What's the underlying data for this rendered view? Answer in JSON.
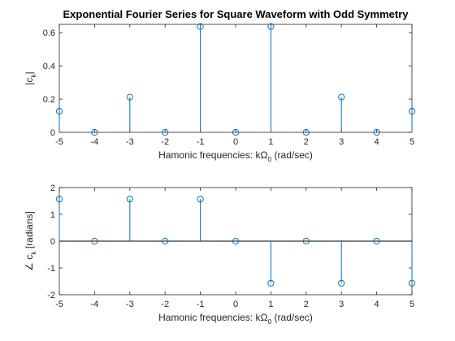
{
  "chart_data": [
    {
      "type": "stem",
      "title": "Exponential Fourier Series for Square Waveform with Odd Symmetry",
      "xlabel": {
        "main": "Hamonic frequencies: kΩ",
        "sub": "0",
        "tail": " (rad/sec)"
      },
      "ylabel": {
        "main": "|c",
        "sub": "k",
        "tail": "|"
      },
      "x": [
        -5,
        -4,
        -3,
        -2,
        -1,
        0,
        1,
        2,
        3,
        4,
        5
      ],
      "y": [
        0.127,
        0,
        0.212,
        0,
        0.637,
        0,
        0.637,
        0,
        0.212,
        0,
        0.127
      ],
      "xlim": [
        -5,
        5
      ],
      "ylim": [
        0,
        0.65
      ],
      "xticks": [
        -5,
        -4,
        -3,
        -2,
        -1,
        0,
        1,
        2,
        3,
        4,
        5
      ],
      "yticks": [
        0,
        0.2,
        0.4,
        0.6
      ],
      "ytick_labels": [
        "0",
        "0.2",
        "0.4",
        "0.6"
      ],
      "grid": false,
      "color": "#0072bd"
    },
    {
      "type": "stem",
      "xlabel": {
        "main": "Hamonic frequencies: kΩ",
        "sub": "0",
        "tail": " (rad/sec)"
      },
      "ylabel": {
        "main": "∠ c",
        "sub": "k",
        "tail": " [radians]"
      },
      "x": [
        -5,
        -4,
        -3,
        -2,
        -1,
        0,
        1,
        2,
        3,
        4,
        5
      ],
      "y": [
        1.5708,
        0,
        1.5708,
        0,
        1.5708,
        0,
        -1.5708,
        0,
        -1.5708,
        0,
        -1.5708
      ],
      "xlim": [
        -5,
        5
      ],
      "ylim": [
        -2,
        2
      ],
      "xticks": [
        -5,
        -4,
        -3,
        -2,
        -1,
        0,
        1,
        2,
        3,
        4,
        5
      ],
      "yticks": [
        -2,
        -1,
        0,
        1,
        2
      ],
      "ytick_labels": [
        "-2",
        "-1",
        "0",
        "1",
        "2"
      ],
      "baseline": 0,
      "grid": false,
      "color": "#0072bd"
    }
  ]
}
